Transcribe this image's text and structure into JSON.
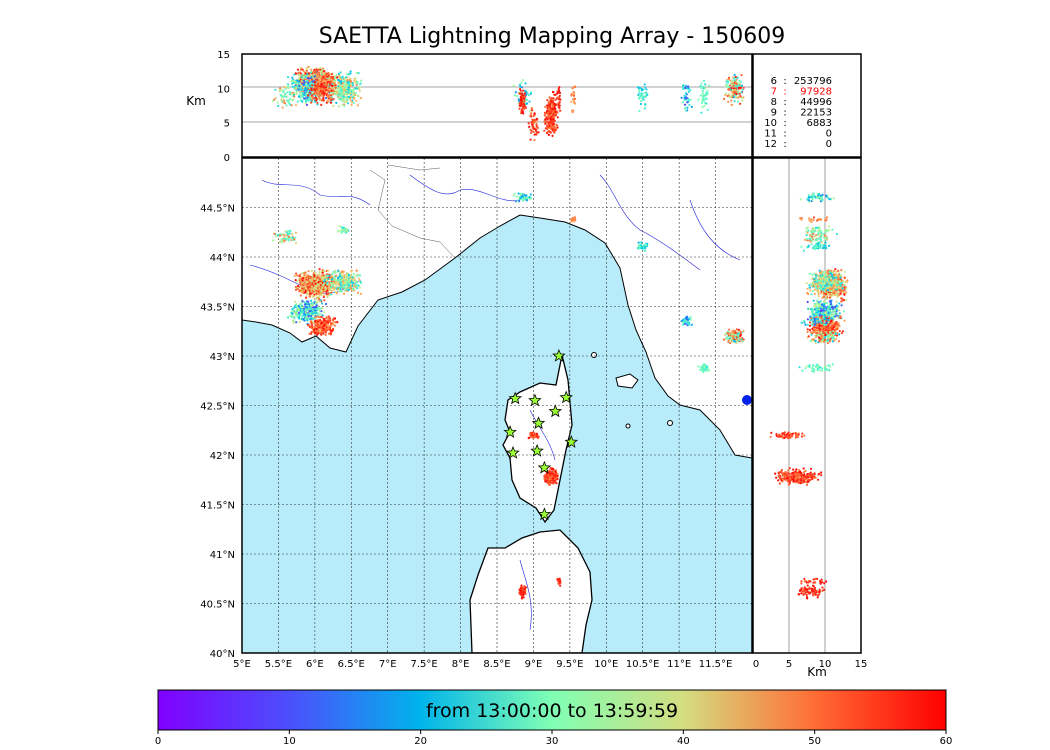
{
  "title": "SAETTA Lightning Mapping Array - 150609",
  "top_panel": {
    "y_axis_label": "Km",
    "y_ticks": [
      "15",
      "10",
      "5",
      "0"
    ]
  },
  "right_panel": {
    "x_axis_label": "Km",
    "x_ticks": [
      "0",
      "5",
      "10",
      "15"
    ]
  },
  "map": {
    "lon_ticks": [
      "5°E",
      "5.5°E",
      "6°E",
      "6.5°E",
      "7°E",
      "7.5°E",
      "8°E",
      "8.5°E",
      "9°E",
      "9.5°E",
      "10°E",
      "10.5°E",
      "11°E",
      "11.5°E"
    ],
    "lat_ticks": [
      "44.5°N",
      "44°N",
      "43.5°N",
      "43°N",
      "42.5°N",
      "42°N",
      "41.5°N",
      "41°N",
      "40.5°N",
      "40°N"
    ],
    "lon_range": [
      5.0,
      12.0
    ],
    "lat_range": [
      40.0,
      45.0
    ],
    "sea_color": "#b8ecfb",
    "station_color": "#9aff33",
    "stations": [
      {
        "lon": 9.35,
        "lat": 43.0
      },
      {
        "lon": 8.75,
        "lat": 42.57
      },
      {
        "lon": 9.02,
        "lat": 42.55
      },
      {
        "lon": 9.45,
        "lat": 42.58
      },
      {
        "lon": 9.3,
        "lat": 42.44
      },
      {
        "lon": 9.07,
        "lat": 42.32
      },
      {
        "lon": 8.68,
        "lat": 42.23
      },
      {
        "lon": 9.52,
        "lat": 42.13
      },
      {
        "lon": 9.05,
        "lat": 42.04
      },
      {
        "lon": 8.72,
        "lat": 42.02
      },
      {
        "lon": 9.15,
        "lat": 41.87
      },
      {
        "lon": 9.15,
        "lat": 41.4
      }
    ]
  },
  "counts_table": [
    {
      "stations": "6",
      "sep": ":",
      "count": "253796",
      "highlight": false
    },
    {
      "stations": "7",
      "sep": ":",
      "count": "97928",
      "highlight": true
    },
    {
      "stations": "8",
      "sep": ":",
      "count": "44996",
      "highlight": false
    },
    {
      "stations": "9",
      "sep": ":",
      "count": "22153",
      "highlight": false
    },
    {
      "stations": "10",
      "sep": ":",
      "count": "6883",
      "highlight": false
    },
    {
      "stations": "11",
      "sep": ":",
      "count": "0",
      "highlight": false
    },
    {
      "stations": "12",
      "sep": ":",
      "count": "0",
      "highlight": false
    }
  ],
  "colorbar": {
    "label": "from 13:00:00 to 13:59:59",
    "ticks": [
      "0",
      "10",
      "20",
      "30",
      "40",
      "50",
      "60"
    ],
    "range": [
      0,
      60
    ],
    "colormap": "rainbow"
  },
  "lightning_clusters": [
    {
      "lon": 6.0,
      "lat": 43.72,
      "r_lon": 0.35,
      "r_lat": 0.18,
      "alt": 11,
      "alt_r": 2.5,
      "tmin": 35,
      "tmax": 60,
      "n": 600
    },
    {
      "lon": 6.4,
      "lat": 43.75,
      "r_lon": 0.3,
      "r_lat": 0.15,
      "alt": 10,
      "alt_r": 3,
      "tmin": 15,
      "tmax": 50,
      "n": 300
    },
    {
      "lon": 5.9,
      "lat": 43.45,
      "r_lon": 0.3,
      "r_lat": 0.15,
      "alt": 10,
      "alt_r": 3,
      "tmin": 5,
      "tmax": 40,
      "n": 300
    },
    {
      "lon": 6.1,
      "lat": 43.3,
      "r_lon": 0.25,
      "r_lat": 0.12,
      "alt": 10,
      "alt_r": 3,
      "tmin": 45,
      "tmax": 60,
      "n": 250
    },
    {
      "lon": 5.6,
      "lat": 44.2,
      "r_lon": 0.2,
      "r_lat": 0.1,
      "alt": 9,
      "alt_r": 3,
      "tmin": 20,
      "tmax": 55,
      "n": 60
    },
    {
      "lon": 6.4,
      "lat": 44.28,
      "r_lon": 0.1,
      "r_lat": 0.05,
      "alt": 9,
      "alt_r": 3,
      "tmin": 20,
      "tmax": 40,
      "n": 30
    },
    {
      "lon": 8.85,
      "lat": 44.6,
      "r_lon": 0.15,
      "r_lat": 0.05,
      "alt": 9,
      "alt_r": 3,
      "tmin": 10,
      "tmax": 35,
      "n": 50
    },
    {
      "lon": 9.55,
      "lat": 44.38,
      "r_lon": 0.05,
      "r_lat": 0.04,
      "alt": 9,
      "alt_r": 3,
      "tmin": 45,
      "tmax": 55,
      "n": 20
    },
    {
      "lon": 10.5,
      "lat": 44.1,
      "r_lon": 0.1,
      "r_lat": 0.06,
      "alt": 9,
      "alt_r": 3,
      "tmin": 15,
      "tmax": 30,
      "n": 40
    },
    {
      "lon": 11.1,
      "lat": 43.35,
      "r_lon": 0.1,
      "r_lat": 0.06,
      "alt": 9,
      "alt_r": 3,
      "tmin": 5,
      "tmax": 30,
      "n": 40
    },
    {
      "lon": 11.75,
      "lat": 43.2,
      "r_lon": 0.18,
      "r_lat": 0.1,
      "alt": 10,
      "alt_r": 3,
      "tmin": 15,
      "tmax": 60,
      "n": 150
    },
    {
      "lon": 11.35,
      "lat": 42.88,
      "r_lon": 0.1,
      "r_lat": 0.05,
      "alt": 9,
      "alt_r": 3,
      "tmin": 20,
      "tmax": 35,
      "n": 40
    },
    {
      "lon": 9.25,
      "lat": 41.78,
      "r_lon": 0.12,
      "r_lat": 0.1,
      "alt": 6,
      "alt_r": 4,
      "tmin": 50,
      "tmax": 60,
      "n": 250
    },
    {
      "lon": 9.0,
      "lat": 42.2,
      "r_lon": 0.08,
      "r_lat": 0.04,
      "alt": 5,
      "alt_r": 3,
      "tmin": 50,
      "tmax": 60,
      "n": 60
    },
    {
      "lon": 8.85,
      "lat": 40.62,
      "r_lon": 0.06,
      "r_lat": 0.08,
      "alt": 8,
      "alt_r": 3,
      "tmin": 52,
      "tmax": 60,
      "n": 70
    },
    {
      "lon": 9.35,
      "lat": 40.72,
      "r_lon": 0.04,
      "r_lat": 0.05,
      "alt": 8,
      "alt_r": 3,
      "tmin": 52,
      "tmax": 60,
      "n": 25
    }
  ]
}
